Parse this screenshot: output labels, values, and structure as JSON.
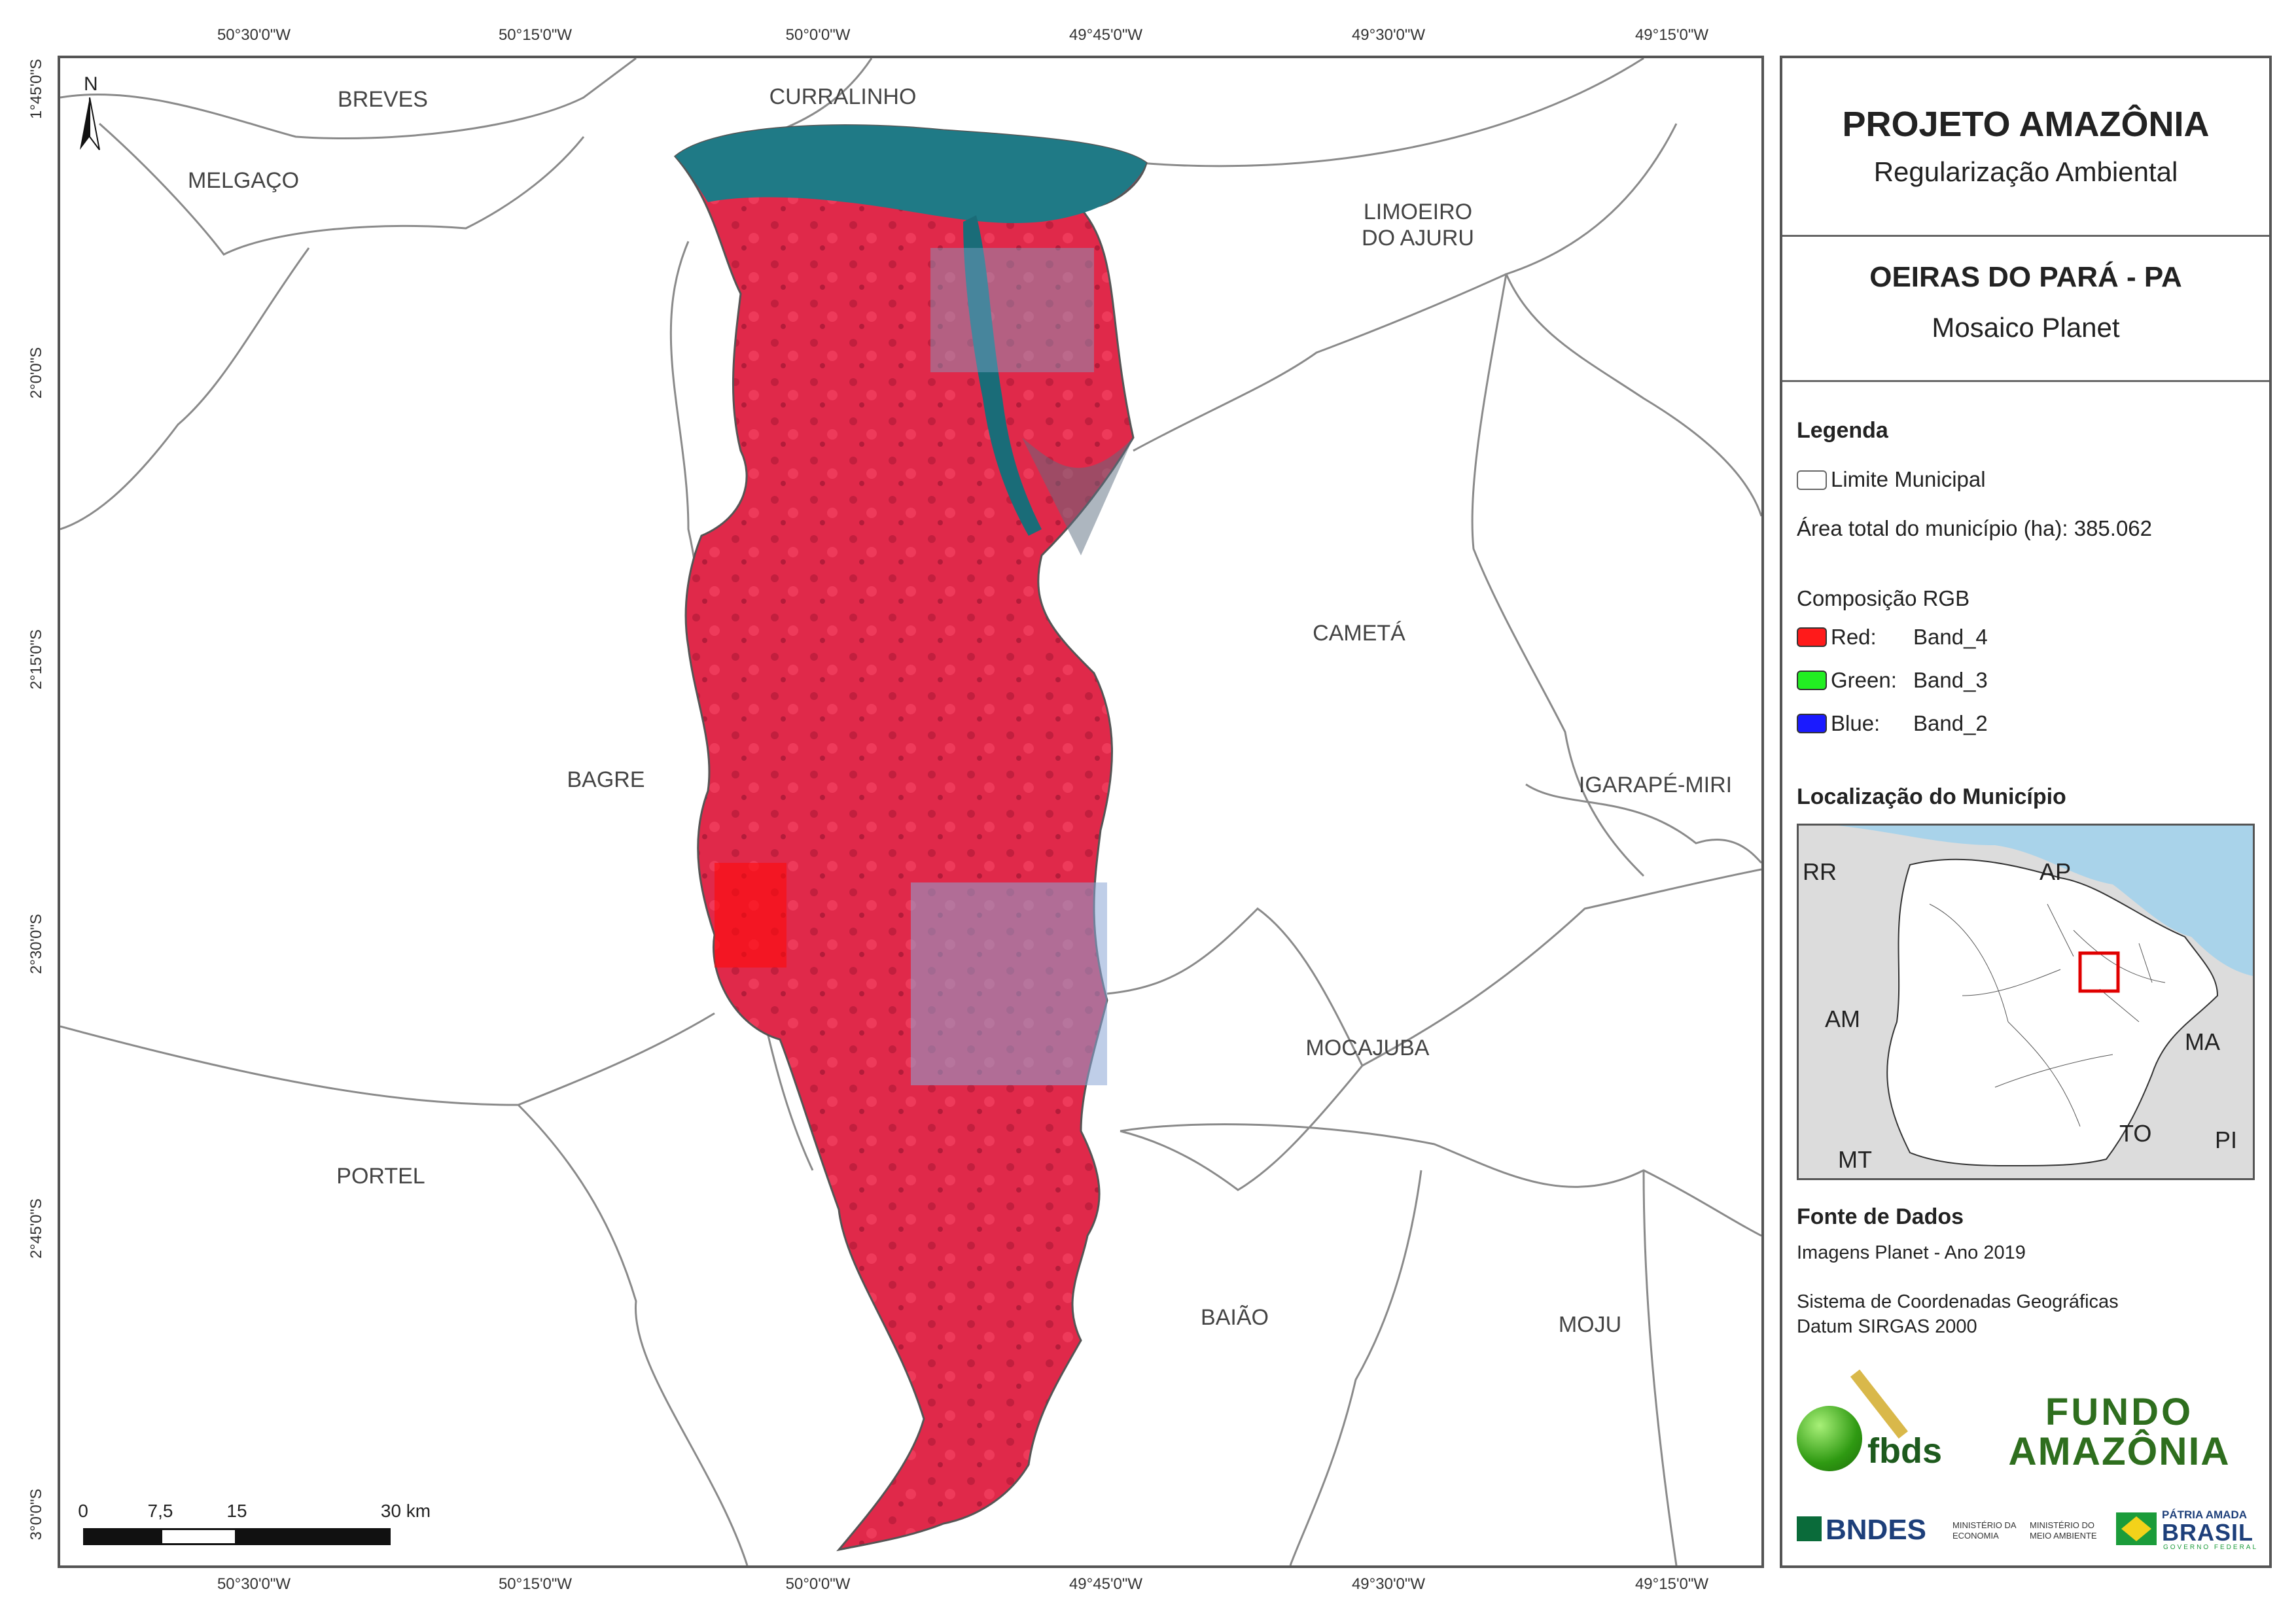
{
  "map": {
    "coords_top": [
      "50°30'0\"W",
      "50°15'0\"W",
      "50°0'0\"W",
      "49°45'0\"W",
      "49°30'0\"W",
      "49°15'0\"W"
    ],
    "coords_bottom": [
      "50°30'0\"W",
      "50°15'0\"W",
      "50°0'0\"W",
      "49°45'0\"W",
      "49°30'0\"W",
      "49°15'0\"W"
    ],
    "coords_left": [
      "1°45'0\"S",
      "2°0'0\"S",
      "2°15'0\"S",
      "2°30'0\"S",
      "2°45'0\"S",
      "3°0'0\"S"
    ],
    "north": "N",
    "municipalities": [
      {
        "id": "breves",
        "label": "BREVES"
      },
      {
        "id": "curralinho",
        "label": "CURRALINHO"
      },
      {
        "id": "melgaco",
        "label": "MELGAÇO"
      },
      {
        "id": "limoeiro",
        "label": "LIMOEIRO\nDO AJURU"
      },
      {
        "id": "cameta",
        "label": "CAMETÁ"
      },
      {
        "id": "bagre",
        "label": "BAGRE"
      },
      {
        "id": "igarape",
        "label": "IGARAPÉ-MIRI"
      },
      {
        "id": "mocajuba",
        "label": "MOCAJUBA"
      },
      {
        "id": "portel",
        "label": "PORTEL"
      },
      {
        "id": "baiao",
        "label": "BAIÃO"
      },
      {
        "id": "moju",
        "label": "MOJU"
      }
    ],
    "scale": {
      "labels": [
        "0",
        "7,5",
        "15",
        "30 km"
      ]
    },
    "colors": {
      "vegetation": "#e0294a",
      "water": "#1f7a86",
      "boundary": "#8a8a8a"
    }
  },
  "panel": {
    "title": "PROJETO AMAZÔNIA",
    "subtitle": "Regularização Ambiental",
    "municipality_title": "OEIRAS DO PARÁ - PA",
    "mosaic": "Mosaico Planet",
    "legend_header": "Legenda",
    "legend_limit": "Limite Municipal",
    "area_text": "Área total do município (ha): 385.062",
    "rgb_header": "Composição RGB",
    "bands": [
      {
        "label": "Red:",
        "band": "Band_4",
        "color": "#ff1a1a"
      },
      {
        "label": "Green:",
        "band": "Band_3",
        "color": "#22ee22"
      },
      {
        "label": "Blue:",
        "band": "Band_2",
        "color": "#1a1aff"
      }
    ],
    "location_header": "Localização do Município",
    "inset_labels": [
      "RR",
      "AP",
      "AM",
      "MA",
      "TO",
      "PI",
      "MT"
    ],
    "source_header": "Fonte de Dados",
    "source_1": "Imagens Planet - Ano 2019",
    "source_2": "Sistema de Coordenadas Geográficas",
    "source_3": "Datum SIRGAS 2000",
    "logos": {
      "fbds": "fbds",
      "fundo_1": "FUNDO",
      "fundo_2": "AMAZÔNIA",
      "bndes": "BNDES",
      "min_economia": "MINISTÉRIO DA ECONOMIA",
      "min_meio": "MINISTÉRIO DO MEIO AMBIENTE",
      "patria": "PÁTRIA AMADA",
      "brasil": "BRASIL",
      "governo": "GOVERNO FEDERAL"
    }
  }
}
